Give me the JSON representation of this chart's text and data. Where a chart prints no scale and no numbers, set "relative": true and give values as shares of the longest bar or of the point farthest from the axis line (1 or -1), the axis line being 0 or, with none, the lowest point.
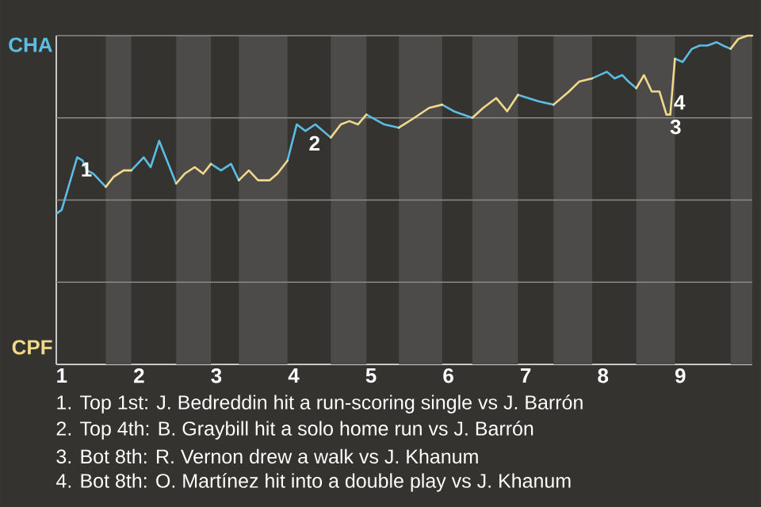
{
  "chart_data": {
    "type": "line",
    "relative": true,
    "grid": "y",
    "marker": "none",
    "line_style": "solid",
    "xlim": [
      0.93,
      9.93
    ],
    "xticks": [
      1,
      2,
      3,
      4,
      5,
      6,
      7,
      8,
      9
    ],
    "x": [
      0.94,
      1.0,
      1.2,
      1.27,
      1.33,
      1.41,
      1.57,
      1.67,
      1.8,
      1.9,
      2.06,
      2.15,
      2.26,
      2.48,
      2.59,
      2.72,
      2.83,
      2.93,
      3.06,
      3.19,
      3.29,
      3.42,
      3.54,
      3.69,
      3.79,
      3.92,
      4.04,
      4.15,
      4.28,
      4.48,
      4.61,
      4.72,
      4.83,
      4.94,
      5.17,
      5.36,
      5.56,
      5.75,
      5.92,
      6.07,
      6.31,
      6.45,
      6.62,
      6.76,
      6.9,
      7.17,
      7.36,
      7.56,
      7.69,
      7.86,
      8.05,
      8.15,
      8.25,
      8.33,
      8.43,
      8.53,
      8.63,
      8.73,
      8.82,
      8.87,
      8.93,
      9.03,
      9.15,
      9.25,
      9.35,
      9.47,
      9.55,
      9.65,
      9.75,
      9.87,
      9.93
    ],
    "series": [
      {
        "name": "CHA",
        "color": "#5bbde3",
        "values": [
          0.46,
          0.47,
          0.63,
          0.62,
          0.59,
          0.58,
          0.54,
          null,
          null,
          0.59,
          0.63,
          0.6,
          0.68,
          0.55,
          null,
          null,
          null,
          0.61,
          0.59,
          0.61,
          0.56,
          null,
          null,
          null,
          null,
          0.62,
          0.73,
          0.71,
          0.73,
          0.69,
          null,
          null,
          null,
          0.76,
          0.73,
          0.72,
          null,
          null,
          0.79,
          0.77,
          0.75,
          null,
          null,
          null,
          0.82,
          0.8,
          0.79,
          null,
          null,
          0.87,
          0.89,
          0.87,
          0.88,
          0.86,
          0.84,
          null,
          null,
          null,
          null,
          null,
          0.93,
          0.92,
          0.96,
          0.97,
          0.97,
          0.98,
          0.97,
          0.96,
          null,
          null,
          null
        ]
      },
      {
        "name": "CPF",
        "color": "#f2d98a",
        "values": [
          null,
          null,
          null,
          null,
          null,
          null,
          0.54,
          0.57,
          0.59,
          0.59,
          null,
          null,
          null,
          0.55,
          0.58,
          0.6,
          0.58,
          0.61,
          null,
          null,
          0.56,
          0.59,
          0.56,
          0.56,
          0.58,
          0.62,
          null,
          null,
          null,
          0.69,
          0.73,
          0.74,
          0.73,
          0.76,
          null,
          0.72,
          0.75,
          0.78,
          0.79,
          null,
          0.75,
          0.78,
          0.81,
          0.77,
          0.82,
          null,
          0.79,
          0.83,
          0.86,
          0.87,
          null,
          null,
          null,
          null,
          0.84,
          0.88,
          0.83,
          0.83,
          0.76,
          0.76,
          0.93,
          null,
          null,
          null,
          null,
          null,
          null,
          0.96,
          0.99,
          1.0,
          1.0
        ]
      }
    ],
    "bands": [
      {
        "axis": "x",
        "from": 1.57,
        "to": 1.9,
        "color": "#4c4b49"
      },
      {
        "axis": "x",
        "from": 2.48,
        "to": 2.93,
        "color": "#4c4b49"
      },
      {
        "axis": "x",
        "from": 3.29,
        "to": 3.92,
        "color": "#4c4b49"
      },
      {
        "axis": "x",
        "from": 4.48,
        "to": 4.94,
        "color": "#4c4b49"
      },
      {
        "axis": "x",
        "from": 5.36,
        "to": 5.92,
        "color": "#4c4b49"
      },
      {
        "axis": "x",
        "from": 6.31,
        "to": 6.9,
        "color": "#4c4b49"
      },
      {
        "axis": "x",
        "from": 7.36,
        "to": 7.86,
        "color": "#4c4b49"
      },
      {
        "axis": "x",
        "from": 8.43,
        "to": 8.93,
        "color": "#4c4b49"
      },
      {
        "axis": "x",
        "from": 9.65,
        "to": 9.93,
        "color": "#4c4b49"
      }
    ],
    "annotations": [
      {
        "text": "1",
        "x": 1.2,
        "y": 0.63
      },
      {
        "text": "2",
        "x": 4.15,
        "y": 0.71
      },
      {
        "text": "3",
        "x": 8.82,
        "y": 0.76
      },
      {
        "text": "4",
        "x": 8.87,
        "y": 0.76
      },
      "1. Top 1st: J. Bedreddin hit a run-scoring single vs J. Barrón",
      "2. Top 4th: B. Graybill hit a solo home run vs J. Barrón",
      "3. Bot 8th: R. Vernon drew a walk vs J. Khanum",
      "4. Bot 8th: O. Martínez hit into a double play vs J. Khanum"
    ]
  }
}
